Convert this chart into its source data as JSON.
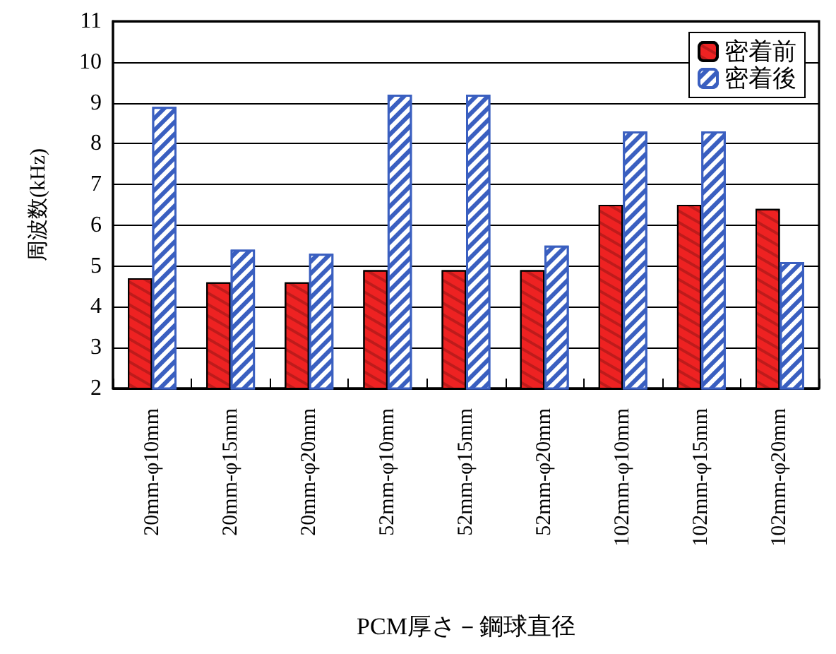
{
  "chart_data": {
    "type": "bar",
    "xlabel": "PCM厚さ－鋼球直径",
    "ylabel": "周波数(kHz)",
    "categories": [
      "20mm-φ10mm",
      "20mm-φ15mm",
      "20mm-φ20mm",
      "52mm-φ10mm",
      "52mm-φ15mm",
      "52mm-φ20mm",
      "102mm-φ10mm",
      "102mm-φ15mm",
      "102mm-φ20mm"
    ],
    "series": [
      {
        "name": "密着前",
        "color": "#ee2222",
        "values": [
          4.7,
          4.6,
          4.6,
          4.9,
          4.9,
          4.9,
          6.5,
          6.5,
          6.4
        ]
      },
      {
        "name": "密着後",
        "color": "#3a5fc0",
        "values": [
          8.9,
          5.4,
          5.3,
          9.2,
          9.2,
          5.5,
          8.3,
          8.3,
          5.1
        ]
      }
    ],
    "ylim": [
      2,
      11
    ],
    "yticks": [
      2,
      3,
      4,
      5,
      6,
      7,
      8,
      9,
      10,
      11
    ],
    "grid": "y",
    "legend": "top right"
  }
}
